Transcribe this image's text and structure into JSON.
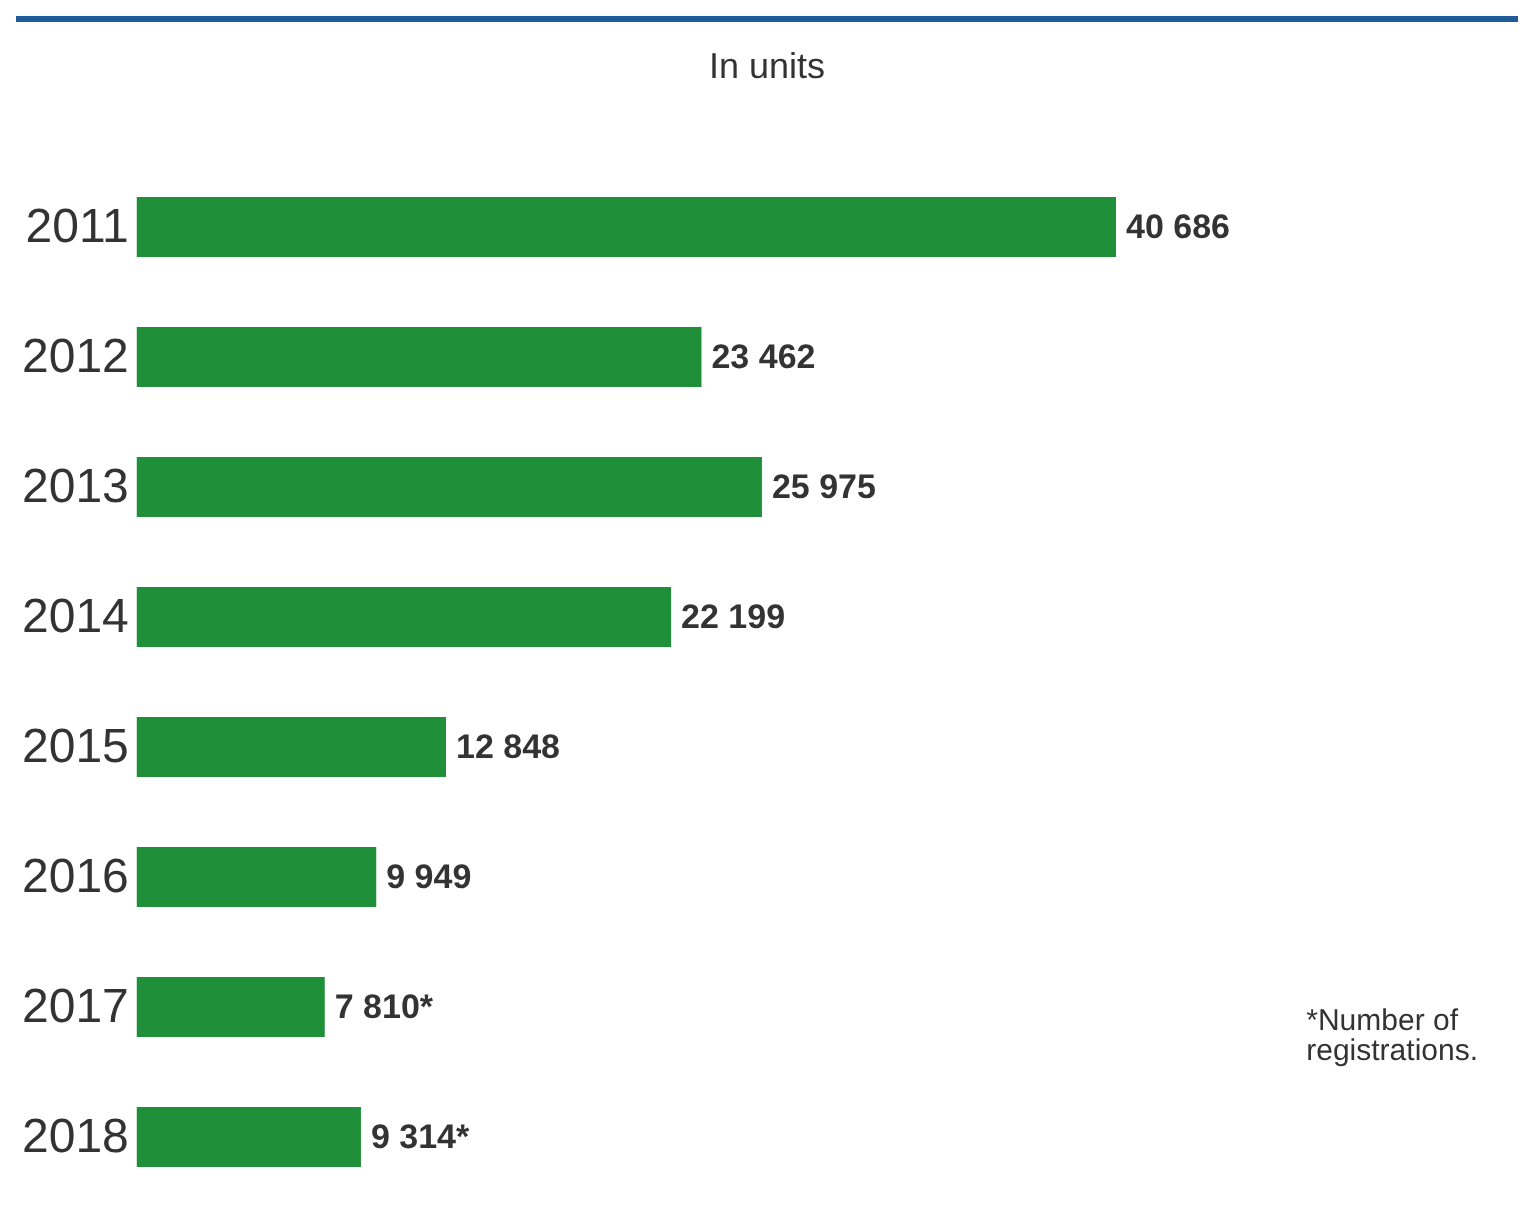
{
  "chart_data": {
    "type": "bar",
    "orientation": "horizontal",
    "title": "In units",
    "categories": [
      "2011",
      "2012",
      "2013",
      "2014",
      "2015",
      "2016",
      "2017",
      "2018"
    ],
    "values": [
      40686,
      23462,
      25975,
      22199,
      12848,
      9949,
      7810,
      9314
    ],
    "value_labels": [
      "40 686",
      "23 462",
      "25 975",
      "22 199",
      "12 848",
      "9 949",
      "7 810*",
      "9 314*"
    ],
    "color": "#1f8f3a",
    "annotations": [
      "*Number of registrations."
    ]
  }
}
